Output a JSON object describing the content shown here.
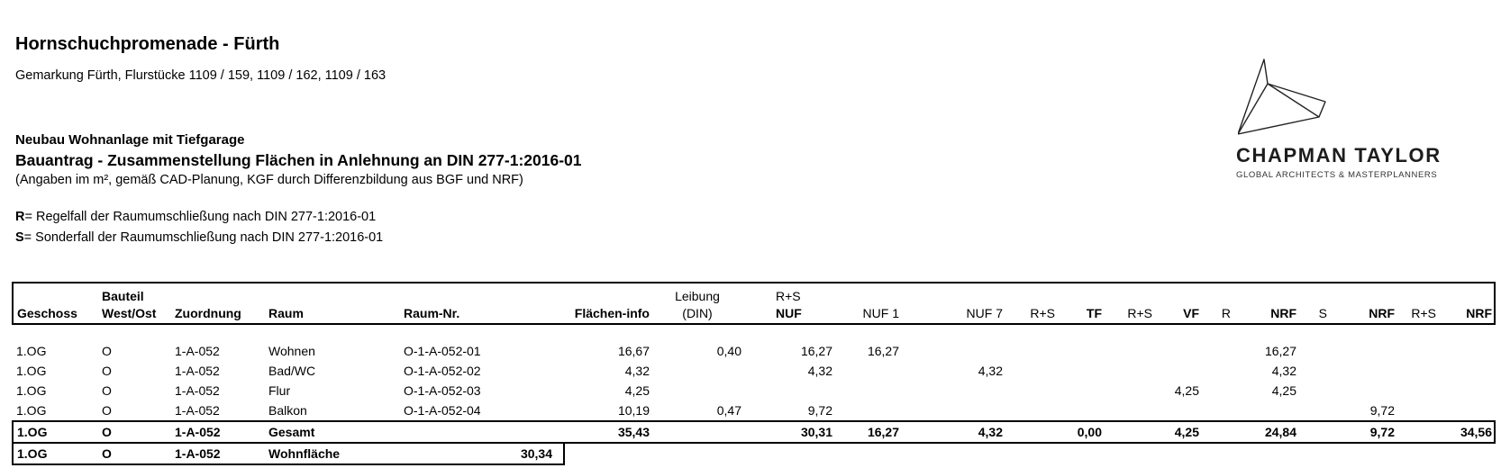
{
  "page": {
    "title": "Hornschuchpromenade - Fürth",
    "subtitle": "Gemarkung Fürth, Flurstücke 1109 / 159, 1109 / 162, 1109 / 163",
    "project": "Neubau Wohnanlage mit Tiefgarage",
    "document_title": "Bauantrag - Zusammenstellung Flächen in Anlehnung an DIN 277-1:2016-01",
    "note": "(Angaben im m², gemäß CAD-Planung, KGF durch Differenzbildung aus BGF und NRF)",
    "legend": [
      {
        "key": "R",
        "rest": "= Regelfall der Raumumschließung nach DIN 277-1:2016-01"
      },
      {
        "key": "S",
        "rest": "= Sonderfall der Raumumschließung nach DIN 277-1:2016-01"
      }
    ]
  },
  "logo": {
    "icon": "chapman-taylor-polyhedron",
    "name": "CHAPMAN TAYLOR",
    "tagline": "GLOBAL ARCHITECTS & MASTERPLANNERS"
  },
  "table": {
    "header_top": [
      "",
      "Bauteil",
      "",
      "",
      "",
      "",
      "Leibung",
      "R+S",
      "",
      "",
      "",
      "",
      "",
      "",
      "",
      "",
      "",
      "",
      "",
      ""
    ],
    "header_bottom": [
      "Geschoss",
      "West/Ost",
      "Zuordnung",
      "Raum",
      "Raum-Nr.",
      "Flächen-info",
      "(DIN)",
      "NUF",
      "NUF 1",
      "NUF 7",
      "R+S",
      "TF",
      "R+S",
      "VF",
      "R",
      "NRF",
      "S",
      "NRF",
      "R+S",
      "NRF"
    ],
    "rows": [
      [
        "1.OG",
        "O",
        "1-A-052",
        "Wohnen",
        "O-1-A-052-01",
        "16,67",
        "0,40",
        "16,27",
        "16,27",
        "",
        "",
        "",
        "",
        "",
        "",
        "16,27",
        "",
        "",
        "",
        ""
      ],
      [
        "1.OG",
        "O",
        "1-A-052",
        "Bad/WC",
        "O-1-A-052-02",
        "4,32",
        "",
        "4,32",
        "",
        "4,32",
        "",
        "",
        "",
        "",
        "",
        "4,32",
        "",
        "",
        "",
        ""
      ],
      [
        "1.OG",
        "O",
        "1-A-052",
        "Flur",
        "O-1-A-052-03",
        "4,25",
        "",
        "",
        "",
        "",
        "",
        "",
        "",
        "4,25",
        "",
        "4,25",
        "",
        "",
        "",
        ""
      ],
      [
        "1.OG",
        "O",
        "1-A-052",
        "Balkon",
        "O-1-A-052-04",
        "10,19",
        "0,47",
        "9,72",
        "",
        "",
        "",
        "",
        "",
        "",
        "",
        "",
        "",
        "9,72",
        "",
        ""
      ]
    ],
    "total_row": [
      "1.OG",
      "O",
      "1-A-052",
      "Gesamt",
      "",
      "35,43",
      "",
      "30,31",
      "16,27",
      "4,32",
      "",
      "0,00",
      "",
      "4,25",
      "",
      "24,84",
      "",
      "9,72",
      "",
      "34,56"
    ],
    "living_area_row": [
      "1.OG",
      "O",
      "1-A-052",
      "Wohnfläche",
      "30,34"
    ]
  }
}
